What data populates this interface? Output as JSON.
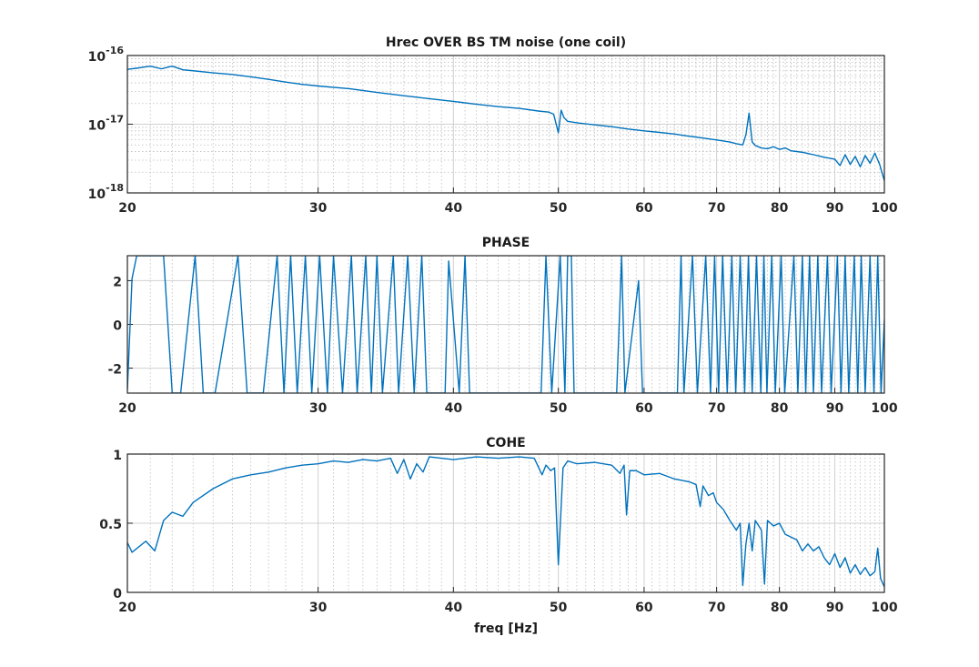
{
  "chart_data": [
    {
      "type": "line",
      "title": "Hrec OVER BS TM noise (one coil)",
      "xlabel": "",
      "ylabel": "",
      "x_scale": "log",
      "y_scale": "log",
      "xlim": [
        20,
        100
      ],
      "ylim": [
        1e-18,
        1e-16
      ],
      "grid": true,
      "x_ticks": [
        20,
        30,
        40,
        50,
        60,
        70,
        80,
        90,
        100
      ],
      "x_tick_labels": [
        "20",
        "30",
        "40",
        "50",
        "60",
        "70",
        "80",
        "90",
        "100"
      ],
      "y_ticks": [
        1e-18,
        1e-17,
        1e-16
      ],
      "y_tick_labels": [
        {
          "base": "10",
          "exp": "-18"
        },
        {
          "base": "10",
          "exp": "-17"
        },
        {
          "base": "10",
          "exp": "-16"
        }
      ],
      "line_color": "#0072BD",
      "series": [
        {
          "x": [
            20,
            20.5,
            21,
            21.5,
            22,
            22.5,
            23,
            24,
            25,
            26,
            27,
            28,
            29,
            30,
            32,
            34,
            36,
            38,
            40,
            42,
            44,
            46,
            48,
            49,
            49.5,
            50,
            50.3,
            50.6,
            51,
            52,
            54,
            56,
            58,
            60,
            62,
            64,
            66,
            68,
            70,
            72,
            73,
            74,
            74.5,
            75,
            75.5,
            76,
            77,
            78,
            79,
            80,
            81,
            82,
            84,
            86,
            88,
            90,
            91,
            92,
            93,
            94,
            95,
            96,
            97,
            98,
            99,
            100
          ],
          "y": [
            6.3e-17,
            6.6e-17,
            7e-17,
            6.4e-17,
            7e-17,
            6.2e-17,
            6e-17,
            5.6e-17,
            5.3e-17,
            4.9e-17,
            4.5e-17,
            4.1e-17,
            3.8e-17,
            3.6e-17,
            3.3e-17,
            2.9e-17,
            2.6e-17,
            2.35e-17,
            2.15e-17,
            1.95e-17,
            1.8e-17,
            1.7e-17,
            1.55e-17,
            1.5e-17,
            1.4e-17,
            7.5e-18,
            1.6e-17,
            1.25e-17,
            1.1e-17,
            1.05e-17,
            9.8e-18,
            9.2e-18,
            8.5e-18,
            8e-18,
            7.6e-18,
            7.2e-18,
            6.7e-18,
            6.3e-18,
            5.9e-18,
            5.5e-18,
            5.2e-18,
            5e-18,
            7e-18,
            1.45e-17,
            5.5e-18,
            4.9e-18,
            4.5e-18,
            4.4e-18,
            4.7e-18,
            4.3e-18,
            4.5e-18,
            4.1e-18,
            3.9e-18,
            3.6e-18,
            3.3e-18,
            3.1e-18,
            2.5e-18,
            3.6e-18,
            2.6e-18,
            3.4e-18,
            2.4e-18,
            3.5e-18,
            2.7e-18,
            3.8e-18,
            2.6e-18,
            1.5e-18
          ]
        }
      ]
    },
    {
      "type": "line",
      "title": "PHASE",
      "xlabel": "",
      "ylabel": "",
      "x_scale": "log",
      "y_scale": "linear",
      "xlim": [
        20,
        100
      ],
      "ylim": [
        -3.1416,
        3.1416
      ],
      "grid": true,
      "x_ticks": [
        20,
        30,
        40,
        50,
        60,
        70,
        80,
        90,
        100
      ],
      "x_tick_labels": [
        "20",
        "30",
        "40",
        "50",
        "60",
        "70",
        "80",
        "90",
        "100"
      ],
      "y_ticks": [
        -2,
        0,
        2
      ],
      "y_tick_labels": [
        "-2",
        "0",
        "2"
      ],
      "line_color": "#0072BD",
      "series": [
        {
          "x": [
            20,
            20.2,
            20.4,
            21.6,
            22,
            22.4,
            23.1,
            23.5,
            24.1,
            25.3,
            25.8,
            26.7,
            27.5,
            27.9,
            28.3,
            28.7,
            29.2,
            29.6,
            30.1,
            30.6,
            31,
            31.6,
            32.2,
            32.6,
            33.2,
            33.6,
            34,
            34.4,
            35.2,
            35.6,
            36.3,
            36.8,
            37.4,
            37.8,
            39.3,
            39.6,
            40.5,
            41,
            41.4,
            48.2,
            48.7,
            49.3,
            50.2,
            50.7,
            51,
            51.4,
            51.7,
            52,
            56.6,
            57.2,
            57.6,
            59.3,
            59.8,
            64.4,
            64.9,
            65.3,
            66.5,
            67.2,
            68.4,
            69.1,
            69.7,
            70.3,
            70.9,
            71.6,
            72.3,
            72.9,
            73.6,
            74.3,
            74.9,
            75.5,
            76.2,
            76.9,
            77.4,
            77.9,
            78.7,
            79.3,
            80.3,
            80.9,
            82.5,
            83.2,
            84,
            84.6,
            85.3,
            86,
            86.8,
            87.5,
            88.6,
            89.3,
            90.5,
            91.2,
            92,
            92.7,
            93.8,
            94.5,
            95.2,
            96,
            97,
            97.8,
            98.6,
            99.3,
            100
          ],
          "y": [
            -3,
            2.1,
            3.14,
            3.14,
            -3.14,
            -3.14,
            3.14,
            -3.14,
            -3.14,
            3.14,
            -3.14,
            -3.14,
            3.14,
            -3.14,
            3.14,
            -3.14,
            3.14,
            -3.14,
            3.14,
            -3.14,
            3.14,
            -3.14,
            3.14,
            -3.14,
            3.14,
            -3.14,
            3.14,
            -3.14,
            3.14,
            -3.14,
            3.14,
            -3.14,
            3.14,
            -3.14,
            -3.14,
            2.9,
            -3.14,
            3.14,
            -3.14,
            -3.14,
            3.14,
            -3.14,
            3.14,
            -3.14,
            3.14,
            3.14,
            -3.14,
            -3.14,
            -3.14,
            3.14,
            -3.14,
            2.0,
            -3.14,
            -3.14,
            3.14,
            -3.14,
            3.14,
            -3.14,
            3.14,
            -3.14,
            3.14,
            -3.14,
            3.14,
            -3.14,
            3.14,
            -3.14,
            3.14,
            -3.14,
            3.14,
            -3.14,
            3.14,
            -3.14,
            3.14,
            -3.14,
            3.14,
            -3.14,
            3.14,
            -3.14,
            3.14,
            -3.14,
            3.14,
            -3.14,
            3.14,
            -3.14,
            3.14,
            -3.14,
            3.14,
            -3.14,
            3.14,
            -3.14,
            3.14,
            -3.14,
            3.14,
            -3.14,
            3.14,
            -3.14,
            3.14,
            -3.14,
            3.14,
            -3.14,
            0.2
          ]
        }
      ]
    },
    {
      "type": "line",
      "title": "COHE",
      "xlabel": "freq [Hz]",
      "ylabel": "",
      "x_scale": "log",
      "y_scale": "linear",
      "xlim": [
        20,
        100
      ],
      "ylim": [
        0,
        1
      ],
      "grid": true,
      "x_ticks": [
        20,
        30,
        40,
        50,
        60,
        70,
        80,
        90,
        100
      ],
      "x_tick_labels": [
        "20",
        "30",
        "40",
        "50",
        "60",
        "70",
        "80",
        "90",
        "100"
      ],
      "y_ticks": [
        0,
        0.5,
        1
      ],
      "y_tick_labels": [
        "0",
        "0.5",
        "1"
      ],
      "line_color": "#0072BD",
      "series": [
        {
          "x": [
            20,
            20.2,
            20.8,
            21.2,
            21.6,
            22,
            22.5,
            23,
            24,
            25,
            26,
            27,
            28,
            29,
            30,
            31,
            32,
            33,
            34,
            35,
            35.5,
            36,
            36.5,
            37,
            37.5,
            38,
            39,
            40,
            42,
            44,
            46,
            47.5,
            48.3,
            48.7,
            49.2,
            49.6,
            50,
            50.5,
            51,
            52,
            54,
            56,
            57,
            57.5,
            57.8,
            58.2,
            59,
            60,
            62,
            64,
            66,
            67,
            67.6,
            68,
            68.8,
            69.5,
            70,
            71,
            72,
            73,
            73.6,
            74,
            74.5,
            75,
            75.5,
            76,
            77,
            77.5,
            78,
            79,
            80,
            81,
            82,
            83,
            84,
            85,
            86,
            87,
            88,
            89,
            90,
            91,
            92,
            93,
            94,
            95,
            96,
            97,
            98,
            98.6,
            99.2,
            100
          ],
          "y": [
            0.36,
            0.29,
            0.37,
            0.3,
            0.52,
            0.58,
            0.55,
            0.65,
            0.75,
            0.82,
            0.85,
            0.87,
            0.9,
            0.92,
            0.93,
            0.95,
            0.94,
            0.96,
            0.95,
            0.97,
            0.86,
            0.96,
            0.82,
            0.93,
            0.87,
            0.98,
            0.97,
            0.96,
            0.98,
            0.97,
            0.98,
            0.97,
            0.85,
            0.92,
            0.88,
            0.9,
            0.2,
            0.9,
            0.95,
            0.93,
            0.94,
            0.92,
            0.86,
            0.92,
            0.56,
            0.88,
            0.88,
            0.85,
            0.86,
            0.82,
            0.8,
            0.78,
            0.62,
            0.77,
            0.7,
            0.72,
            0.65,
            0.6,
            0.52,
            0.45,
            0.5,
            0.05,
            0.35,
            0.5,
            0.3,
            0.52,
            0.45,
            0.06,
            0.52,
            0.48,
            0.5,
            0.42,
            0.4,
            0.38,
            0.3,
            0.35,
            0.3,
            0.33,
            0.25,
            0.2,
            0.28,
            0.18,
            0.25,
            0.14,
            0.2,
            0.13,
            0.18,
            0.12,
            0.15,
            0.32,
            0.1,
            0.04
          ]
        }
      ]
    }
  ]
}
